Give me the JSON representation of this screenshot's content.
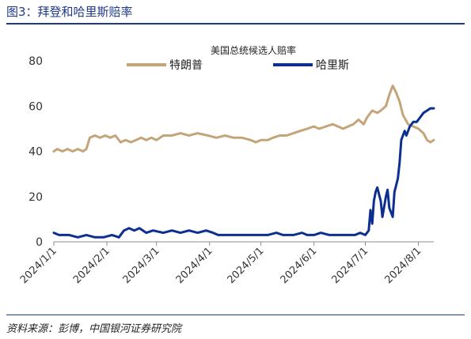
{
  "figure": {
    "title": "图3：拜登和哈里斯赔率",
    "source": "资料来源：彭博，中国银河证券研究院"
  },
  "chart_data": {
    "type": "line",
    "title": "美国总统候选人赔率",
    "xlabel": "",
    "ylabel": "",
    "ylim": [
      0,
      80
    ],
    "yticks": [
      0,
      20,
      40,
      60,
      80
    ],
    "xlim": [
      "2024-01-01",
      "2024-08-10"
    ],
    "xticks": [
      "2024/1/1",
      "2024/2/1",
      "2024/3/1",
      "2024/4/1",
      "2024/5/1",
      "2024/6/1",
      "2024/7/1",
      "2024/8/1"
    ],
    "grid": false,
    "legend_position": "top",
    "series": [
      {
        "name": "特朗普",
        "color": "#c4a57a",
        "points": [
          [
            "2024-01-01",
            40
          ],
          [
            "2024-01-03",
            41
          ],
          [
            "2024-01-06",
            40
          ],
          [
            "2024-01-09",
            41
          ],
          [
            "2024-01-12",
            40
          ],
          [
            "2024-01-15",
            41
          ],
          [
            "2024-01-18",
            40
          ],
          [
            "2024-01-20",
            41
          ],
          [
            "2024-01-22",
            46
          ],
          [
            "2024-01-25",
            47
          ],
          [
            "2024-01-28",
            46
          ],
          [
            "2024-01-31",
            47
          ],
          [
            "2024-02-03",
            46
          ],
          [
            "2024-02-06",
            47
          ],
          [
            "2024-02-09",
            44
          ],
          [
            "2024-02-12",
            45
          ],
          [
            "2024-02-15",
            44
          ],
          [
            "2024-02-18",
            45
          ],
          [
            "2024-02-21",
            46
          ],
          [
            "2024-02-24",
            45
          ],
          [
            "2024-02-27",
            46
          ],
          [
            "2024-03-01",
            45
          ],
          [
            "2024-03-05",
            47
          ],
          [
            "2024-03-10",
            47
          ],
          [
            "2024-03-15",
            48
          ],
          [
            "2024-03-20",
            47
          ],
          [
            "2024-03-25",
            48
          ],
          [
            "2024-03-31",
            47
          ],
          [
            "2024-04-05",
            46
          ],
          [
            "2024-04-10",
            47
          ],
          [
            "2024-04-15",
            46
          ],
          [
            "2024-04-20",
            46
          ],
          [
            "2024-04-25",
            45
          ],
          [
            "2024-04-28",
            44
          ],
          [
            "2024-05-01",
            45
          ],
          [
            "2024-05-05",
            45
          ],
          [
            "2024-05-08",
            46
          ],
          [
            "2024-05-12",
            47
          ],
          [
            "2024-05-16",
            47
          ],
          [
            "2024-05-20",
            48
          ],
          [
            "2024-05-24",
            49
          ],
          [
            "2024-05-28",
            50
          ],
          [
            "2024-06-01",
            51
          ],
          [
            "2024-06-04",
            50
          ],
          [
            "2024-06-08",
            51
          ],
          [
            "2024-06-12",
            52
          ],
          [
            "2024-06-15",
            51
          ],
          [
            "2024-06-18",
            50
          ],
          [
            "2024-06-21",
            51
          ],
          [
            "2024-06-24",
            52
          ],
          [
            "2024-06-27",
            54
          ],
          [
            "2024-06-30",
            52
          ],
          [
            "2024-07-02",
            55
          ],
          [
            "2024-07-05",
            58
          ],
          [
            "2024-07-08",
            57
          ],
          [
            "2024-07-10",
            58
          ],
          [
            "2024-07-13",
            60
          ],
          [
            "2024-07-15",
            65
          ],
          [
            "2024-07-17",
            69
          ],
          [
            "2024-07-19",
            66
          ],
          [
            "2024-07-21",
            62
          ],
          [
            "2024-07-23",
            56
          ],
          [
            "2024-07-26",
            52
          ],
          [
            "2024-07-29",
            51
          ],
          [
            "2024-08-01",
            50
          ],
          [
            "2024-08-04",
            48
          ],
          [
            "2024-08-06",
            45
          ],
          [
            "2024-08-08",
            44
          ],
          [
            "2024-08-10",
            45
          ]
        ]
      },
      {
        "name": "哈里斯",
        "color": "#0d2f8f",
        "points": [
          [
            "2024-01-01",
            4
          ],
          [
            "2024-01-04",
            3
          ],
          [
            "2024-01-10",
            3
          ],
          [
            "2024-01-15",
            2
          ],
          [
            "2024-01-20",
            3
          ],
          [
            "2024-01-25",
            2
          ],
          [
            "2024-01-30",
            2
          ],
          [
            "2024-02-04",
            3
          ],
          [
            "2024-02-08",
            2
          ],
          [
            "2024-02-11",
            5
          ],
          [
            "2024-02-14",
            6
          ],
          [
            "2024-02-17",
            5
          ],
          [
            "2024-02-20",
            6
          ],
          [
            "2024-02-24",
            4
          ],
          [
            "2024-02-28",
            5
          ],
          [
            "2024-03-05",
            4
          ],
          [
            "2024-03-10",
            5
          ],
          [
            "2024-03-15",
            4
          ],
          [
            "2024-03-20",
            5
          ],
          [
            "2024-03-25",
            4
          ],
          [
            "2024-03-30",
            5
          ],
          [
            "2024-04-03",
            4
          ],
          [
            "2024-04-06",
            3
          ],
          [
            "2024-04-15",
            3
          ],
          [
            "2024-04-25",
            3
          ],
          [
            "2024-05-05",
            3
          ],
          [
            "2024-05-10",
            4
          ],
          [
            "2024-05-14",
            3
          ],
          [
            "2024-05-20",
            3
          ],
          [
            "2024-05-25",
            4
          ],
          [
            "2024-05-28",
            3
          ],
          [
            "2024-06-01",
            3
          ],
          [
            "2024-06-05",
            4
          ],
          [
            "2024-06-10",
            3
          ],
          [
            "2024-06-15",
            3
          ],
          [
            "2024-06-20",
            3
          ],
          [
            "2024-06-25",
            3
          ],
          [
            "2024-06-28",
            4
          ],
          [
            "2024-07-01",
            3
          ],
          [
            "2024-07-03",
            5
          ],
          [
            "2024-07-04",
            14
          ],
          [
            "2024-07-05",
            8
          ],
          [
            "2024-07-06",
            18
          ],
          [
            "2024-07-07",
            22
          ],
          [
            "2024-07-08",
            24
          ],
          [
            "2024-07-10",
            18
          ],
          [
            "2024-07-11",
            11
          ],
          [
            "2024-07-13",
            20
          ],
          [
            "2024-07-14",
            23
          ],
          [
            "2024-07-15",
            15
          ],
          [
            "2024-07-17",
            11
          ],
          [
            "2024-07-18",
            22
          ],
          [
            "2024-07-20",
            28
          ],
          [
            "2024-07-21",
            35
          ],
          [
            "2024-07-22",
            45
          ],
          [
            "2024-07-24",
            49
          ],
          [
            "2024-07-25",
            47
          ],
          [
            "2024-07-27",
            51
          ],
          [
            "2024-07-29",
            53
          ],
          [
            "2024-07-31",
            53
          ],
          [
            "2024-08-02",
            55
          ],
          [
            "2024-08-04",
            57
          ],
          [
            "2024-08-06",
            58
          ],
          [
            "2024-08-08",
            59
          ],
          [
            "2024-08-10",
            59
          ]
        ]
      }
    ]
  }
}
